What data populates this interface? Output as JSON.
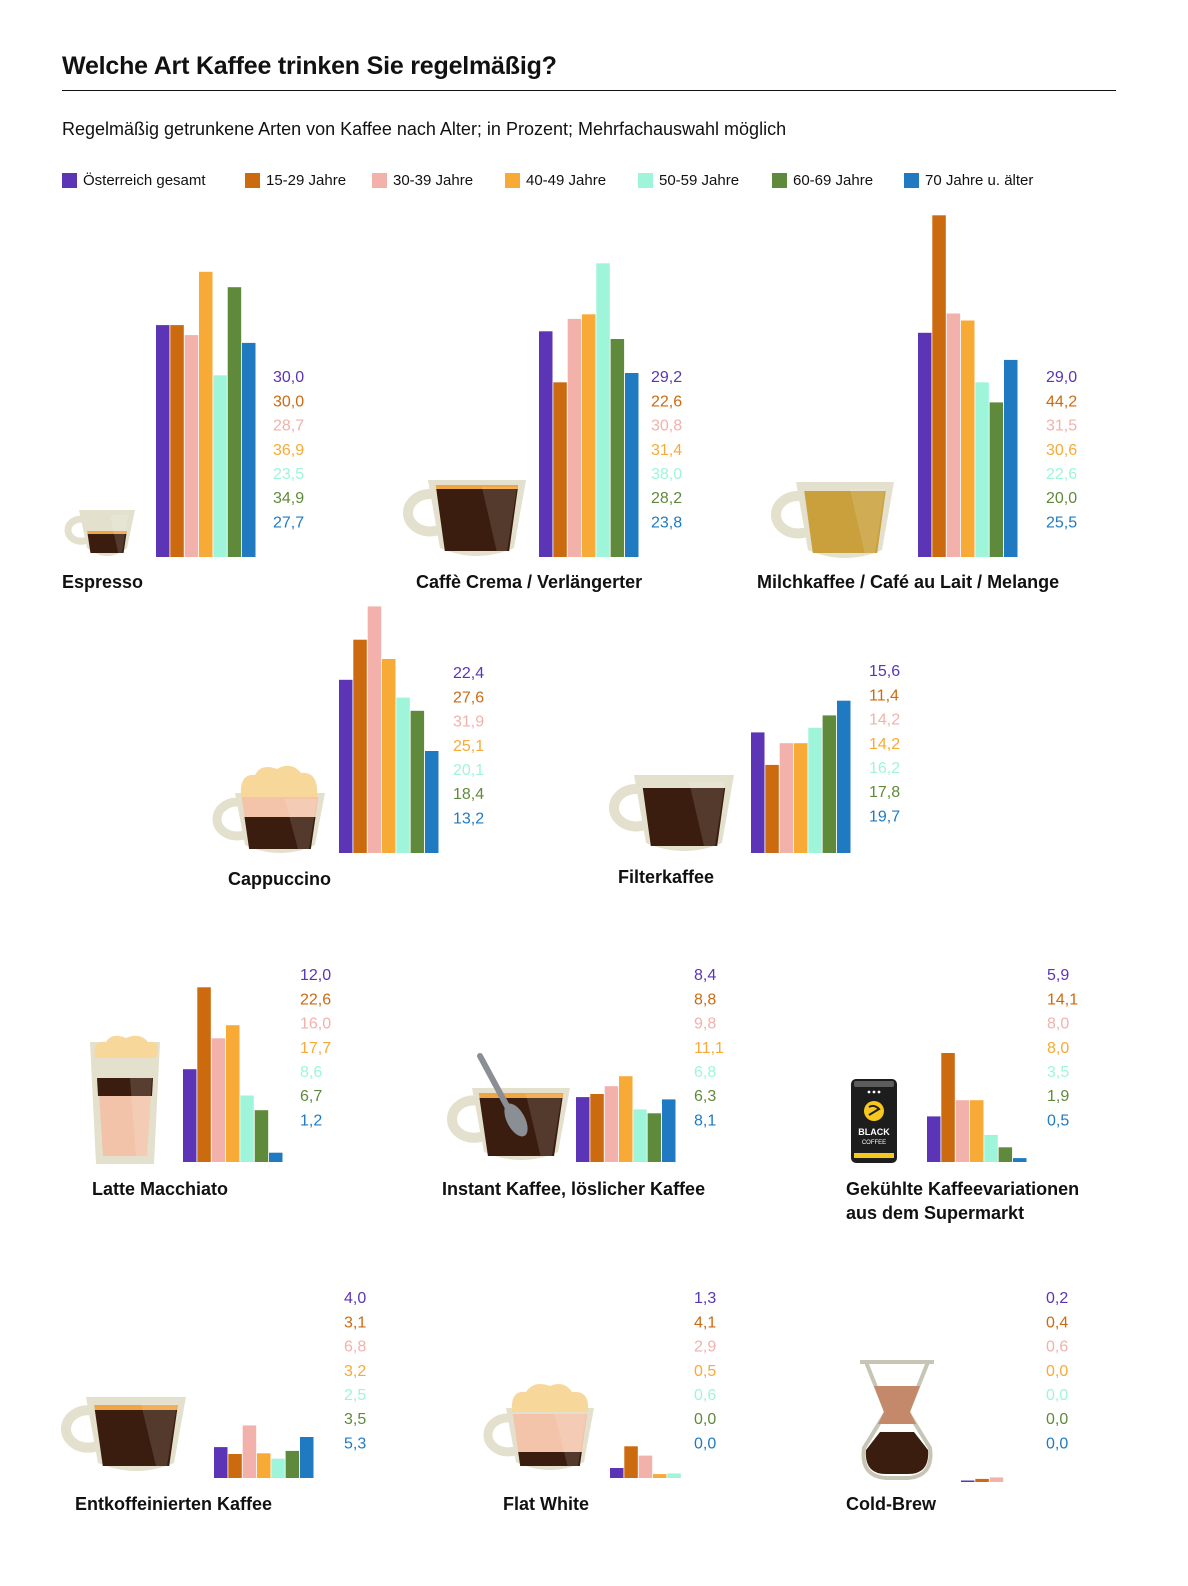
{
  "title": "Welche Art Kaffee trinken Sie regelmäßig?",
  "subtitle": "Regelmäßig getrunkene Arten von Kaffee nach Alter; in Prozent; Mehrfachauswahl möglich",
  "chart_data": {
    "type": "bar",
    "title": "Welche Art Kaffee trinken Sie regelmäßig?",
    "subtitle": "Regelmäßig getrunkene Arten von Kaffee nach Alter; in Prozent; Mehrfachauswahl möglich",
    "legend_placement": "top",
    "grid": false,
    "series": [
      {
        "name": "Österreich gesamt",
        "color": "#5b35b5"
      },
      {
        "name": "15-29 Jahre",
        "color": "#cc6a10"
      },
      {
        "name": "30-39 Jahre",
        "color": "#f2b1ab"
      },
      {
        "name": "40-49 Jahre",
        "color": "#f8aa36"
      },
      {
        "name": "50-59 Jahre",
        "color": "#9ff5da"
      },
      {
        "name": "60-69 Jahre",
        "color": "#5f8a3b"
      },
      {
        "name": "70 Jahre u. älter",
        "color": "#1f7ac2"
      }
    ],
    "categories": [
      {
        "name": "Espresso",
        "icon": "espresso-cup-icon",
        "values": [
          30.0,
          30.0,
          28.7,
          36.9,
          23.5,
          34.9,
          27.7
        ],
        "labels": [
          "30,0",
          "30,0",
          "28,7",
          "36,9",
          "23,5",
          "34,9",
          "27,7"
        ]
      },
      {
        "name": "Caffè Crema / Verlängerter",
        "icon": "coffee-cup-icon",
        "values": [
          29.2,
          22.6,
          30.8,
          31.4,
          38.0,
          28.2,
          23.8
        ],
        "labels": [
          "29,2",
          "22,6",
          "30,8",
          "31,4",
          "38,0",
          "28,2",
          "23,8"
        ]
      },
      {
        "name": "Milchkaffee / Café au Lait / Melange",
        "icon": "milk-coffee-cup-icon",
        "values": [
          29.0,
          44.2,
          31.5,
          30.6,
          22.6,
          20.0,
          25.5
        ],
        "labels": [
          "29,0",
          "44,2",
          "31,5",
          "30,6",
          "22,6",
          "20,0",
          "25,5"
        ]
      },
      {
        "name": "Cappuccino",
        "icon": "cappuccino-cup-icon",
        "values": [
          22.4,
          27.6,
          31.9,
          25.1,
          20.1,
          18.4,
          13.2
        ],
        "labels": [
          "22,4",
          "27,6",
          "31,9",
          "25,1",
          "20,1",
          "18,4",
          "13,2"
        ]
      },
      {
        "name": "Filterkaffee",
        "icon": "filter-coffee-cup-icon",
        "values": [
          15.6,
          11.4,
          14.2,
          14.2,
          16.2,
          17.8,
          19.7
        ],
        "labels": [
          "15,6",
          "11,4",
          "14,2",
          "14,2",
          "16,2",
          "17,8",
          "19,7"
        ]
      },
      {
        "name": "Latte Macchiato",
        "icon": "latte-glass-icon",
        "values": [
          12.0,
          22.6,
          16.0,
          17.7,
          8.6,
          6.7,
          1.2
        ],
        "labels": [
          "12,0",
          "22,6",
          "16,0",
          "17,7",
          "8,6",
          "6,7",
          "1,2"
        ]
      },
      {
        "name": "Instant Kaffee, löslicher Kaffee",
        "icon": "instant-coffee-cup-icon",
        "values": [
          8.4,
          8.8,
          9.8,
          11.1,
          6.8,
          6.3,
          8.1
        ],
        "labels": [
          "8,4",
          "8,8",
          "9,8",
          "11,1",
          "6,8",
          "6,3",
          "8,1"
        ]
      },
      {
        "name": "Gekühlte Kaffeevariationen aus dem Supermarkt",
        "name_lines": [
          "Gekühlte Kaffeevariationen",
          "aus dem Supermarkt"
        ],
        "icon": "coffee-can-icon",
        "can_text": [
          "BLACK",
          "COFFEE"
        ],
        "values": [
          5.9,
          14.1,
          8.0,
          8.0,
          3.5,
          1.9,
          0.5
        ],
        "labels": [
          "5,9",
          "14,1",
          "8,0",
          "8,0",
          "3,5",
          "1,9",
          "0,5"
        ]
      },
      {
        "name": "Entkoffeinierten Kaffee",
        "icon": "decaf-cup-icon",
        "values": [
          4.0,
          3.1,
          6.8,
          3.2,
          2.5,
          3.5,
          5.3
        ],
        "labels": [
          "4,0",
          "3,1",
          "6,8",
          "3,2",
          "2,5",
          "3,5",
          "5,3"
        ]
      },
      {
        "name": "Flat White",
        "icon": "flat-white-cup-icon",
        "values": [
          1.3,
          4.1,
          2.9,
          0.5,
          0.6,
          0.0,
          0.0
        ],
        "labels": [
          "1,3",
          "4,1",
          "2,9",
          "0,5",
          "0,6",
          "0,0",
          "0,0"
        ]
      },
      {
        "name": "Cold-Brew",
        "icon": "cold-brew-carafe-icon",
        "values": [
          0.2,
          0.4,
          0.6,
          0.0,
          0.0,
          0.0,
          0.0
        ],
        "labels": [
          "0,2",
          "0,4",
          "0,6",
          "0,0",
          "0,0",
          "0,0",
          "0,0"
        ]
      }
    ]
  }
}
